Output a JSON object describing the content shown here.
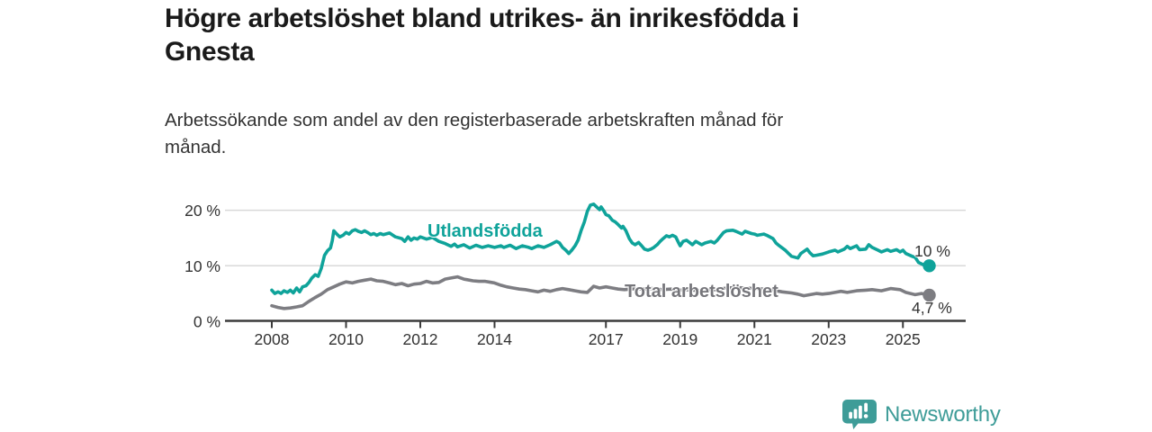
{
  "header": {
    "title_lines": [
      "Högre arbetslöshet bland utrikes- än inrikesfödda i",
      "Gnesta"
    ],
    "subtitle_lines": [
      "Arbetssökande som andel av den registerbaserade arbetskraften månad för",
      "månad."
    ]
  },
  "footer": {
    "brand": "Newsworthy"
  },
  "colors": {
    "accent_teal": "#0fa39a",
    "series_gray": "#7d7d82",
    "logo_teal": "#3e9c98",
    "axis": "#3b3b3b",
    "grid": "#d9d9d9",
    "text_dark": "#1a1a1a",
    "text_body": "#333333"
  },
  "chart_data": {
    "type": "line",
    "title": "Högre arbetslöshet bland utrikes- än inrikesfödda i Gnesta",
    "subtitle": "Arbetssökande som andel av den registerbaserade arbetskraften månad för månad.",
    "x_unit": "decimal_year",
    "x_range": [
      2008.0,
      2025.75
    ],
    "ylim": [
      0,
      22
    ],
    "grid": "horizontal",
    "legend_position": "inline-labels",
    "y_ticks": [
      {
        "value": 0,
        "label": "0 %"
      },
      {
        "value": 10,
        "label": "10 %"
      },
      {
        "value": 20,
        "label": "20 %"
      }
    ],
    "x_ticks": [
      {
        "value": 2008,
        "label": "2008"
      },
      {
        "value": 2010,
        "label": "2010"
      },
      {
        "value": 2012,
        "label": "2012"
      },
      {
        "value": 2014,
        "label": "2014"
      },
      {
        "value": 2017,
        "label": "2017"
      },
      {
        "value": 2019,
        "label": "2019"
      },
      {
        "value": 2021,
        "label": "2021"
      },
      {
        "value": 2023,
        "label": "2023"
      },
      {
        "value": 2025,
        "label": "2025"
      }
    ],
    "series": [
      {
        "name": "Total arbetslöshet",
        "color": "#7d7d82",
        "end_value": 4.7,
        "end_label": "4,7 %",
        "points": [
          [
            2008.0,
            2.8
          ],
          [
            2008.17,
            2.5
          ],
          [
            2008.33,
            2.3
          ],
          [
            2008.5,
            2.4
          ],
          [
            2008.67,
            2.6
          ],
          [
            2008.83,
            2.8
          ],
          [
            2009.0,
            3.6
          ],
          [
            2009.17,
            4.3
          ],
          [
            2009.33,
            4.9
          ],
          [
            2009.5,
            5.7
          ],
          [
            2009.67,
            6.2
          ],
          [
            2009.83,
            6.7
          ],
          [
            2010.0,
            7.1
          ],
          [
            2010.17,
            6.9
          ],
          [
            2010.33,
            7.2
          ],
          [
            2010.5,
            7.4
          ],
          [
            2010.67,
            7.6
          ],
          [
            2010.83,
            7.3
          ],
          [
            2011.0,
            7.2
          ],
          [
            2011.17,
            6.9
          ],
          [
            2011.33,
            6.6
          ],
          [
            2011.5,
            6.8
          ],
          [
            2011.67,
            6.4
          ],
          [
            2011.83,
            6.7
          ],
          [
            2012.0,
            6.8
          ],
          [
            2012.17,
            7.2
          ],
          [
            2012.33,
            6.9
          ],
          [
            2012.5,
            7.0
          ],
          [
            2012.67,
            7.6
          ],
          [
            2012.83,
            7.8
          ],
          [
            2013.0,
            8.0
          ],
          [
            2013.17,
            7.6
          ],
          [
            2013.25,
            7.5
          ],
          [
            2013.42,
            7.3
          ],
          [
            2013.58,
            7.2
          ],
          [
            2013.75,
            7.2
          ],
          [
            2013.92,
            7.0
          ],
          [
            2014.0,
            6.9
          ],
          [
            2014.17,
            6.5
          ],
          [
            2014.33,
            6.2
          ],
          [
            2014.5,
            6.0
          ],
          [
            2014.67,
            5.8
          ],
          [
            2014.83,
            5.7
          ],
          [
            2015.0,
            5.5
          ],
          [
            2015.17,
            5.3
          ],
          [
            2015.33,
            5.6
          ],
          [
            2015.5,
            5.4
          ],
          [
            2015.67,
            5.7
          ],
          [
            2015.83,
            5.9
          ],
          [
            2016.0,
            5.7
          ],
          [
            2016.17,
            5.5
          ],
          [
            2016.33,
            5.3
          ],
          [
            2016.5,
            5.2
          ],
          [
            2016.67,
            6.3
          ],
          [
            2016.83,
            6.0
          ],
          [
            2017.0,
            6.2
          ],
          [
            2017.17,
            6.0
          ],
          [
            2017.33,
            5.8
          ],
          [
            2017.5,
            5.7
          ],
          [
            2017.67,
            5.8
          ],
          [
            2017.83,
            5.9
          ],
          [
            2018.0,
            5.8
          ],
          [
            2018.25,
            5.9
          ],
          [
            2018.5,
            5.7
          ],
          [
            2018.75,
            5.8
          ],
          [
            2019.0,
            5.6
          ],
          [
            2019.25,
            5.7
          ],
          [
            2019.5,
            5.5
          ],
          [
            2019.75,
            5.6
          ],
          [
            2020.0,
            5.7
          ],
          [
            2020.25,
            6.0
          ],
          [
            2020.5,
            6.1
          ],
          [
            2020.75,
            6.0
          ],
          [
            2021.0,
            5.9
          ],
          [
            2021.25,
            5.8
          ],
          [
            2021.5,
            5.6
          ],
          [
            2021.75,
            5.3
          ],
          [
            2022.0,
            5.1
          ],
          [
            2022.17,
            4.9
          ],
          [
            2022.33,
            4.6
          ],
          [
            2022.5,
            4.8
          ],
          [
            2022.67,
            5.0
          ],
          [
            2022.83,
            4.9
          ],
          [
            2023.0,
            5.0
          ],
          [
            2023.17,
            5.2
          ],
          [
            2023.33,
            5.4
          ],
          [
            2023.5,
            5.2
          ],
          [
            2023.75,
            5.5
          ],
          [
            2024.0,
            5.6
          ],
          [
            2024.17,
            5.7
          ],
          [
            2024.42,
            5.5
          ],
          [
            2024.67,
            5.9
          ],
          [
            2024.92,
            5.7
          ],
          [
            2025.08,
            5.2
          ],
          [
            2025.33,
            4.8
          ],
          [
            2025.5,
            5.0
          ],
          [
            2025.71,
            4.7
          ]
        ]
      },
      {
        "name": "Utlandsfödda",
        "color": "#0fa39a",
        "end_value": 10,
        "end_label": "10 %",
        "points": [
          [
            2008.0,
            5.6
          ],
          [
            2008.08,
            5.0
          ],
          [
            2008.17,
            5.3
          ],
          [
            2008.25,
            5.0
          ],
          [
            2008.33,
            5.5
          ],
          [
            2008.42,
            5.2
          ],
          [
            2008.5,
            5.6
          ],
          [
            2008.58,
            5.1
          ],
          [
            2008.67,
            6.0
          ],
          [
            2008.75,
            5.3
          ],
          [
            2008.83,
            6.2
          ],
          [
            2008.92,
            6.4
          ],
          [
            2009.0,
            7.0
          ],
          [
            2009.08,
            7.8
          ],
          [
            2009.17,
            8.4
          ],
          [
            2009.25,
            8.1
          ],
          [
            2009.33,
            9.5
          ],
          [
            2009.42,
            11.9
          ],
          [
            2009.5,
            12.7
          ],
          [
            2009.58,
            13.2
          ],
          [
            2009.63,
            14.5
          ],
          [
            2009.67,
            16.3
          ],
          [
            2009.75,
            15.7
          ],
          [
            2009.83,
            15.2
          ],
          [
            2009.92,
            15.5
          ],
          [
            2010.0,
            16.0
          ],
          [
            2010.08,
            15.7
          ],
          [
            2010.17,
            16.3
          ],
          [
            2010.25,
            16.5
          ],
          [
            2010.33,
            16.2
          ],
          [
            2010.42,
            16.0
          ],
          [
            2010.5,
            16.3
          ],
          [
            2010.58,
            16.0
          ],
          [
            2010.67,
            15.6
          ],
          [
            2010.75,
            15.8
          ],
          [
            2010.83,
            15.5
          ],
          [
            2010.92,
            15.8
          ],
          [
            2011.0,
            15.6
          ],
          [
            2011.17,
            15.9
          ],
          [
            2011.33,
            15.2
          ],
          [
            2011.5,
            14.9
          ],
          [
            2011.58,
            14.4
          ],
          [
            2011.67,
            15.2
          ],
          [
            2011.75,
            14.6
          ],
          [
            2011.83,
            15.0
          ],
          [
            2011.92,
            14.8
          ],
          [
            2012.0,
            15.2
          ],
          [
            2012.17,
            14.8
          ],
          [
            2012.33,
            15.1
          ],
          [
            2012.5,
            14.4
          ],
          [
            2012.67,
            14.0
          ],
          [
            2012.83,
            13.5
          ],
          [
            2012.92,
            13.9
          ],
          [
            2013.0,
            13.4
          ],
          [
            2013.17,
            13.8
          ],
          [
            2013.33,
            13.2
          ],
          [
            2013.5,
            13.7
          ],
          [
            2013.67,
            13.3
          ],
          [
            2013.83,
            13.6
          ],
          [
            2014.0,
            13.3
          ],
          [
            2014.17,
            13.6
          ],
          [
            2014.25,
            13.3
          ],
          [
            2014.42,
            13.7
          ],
          [
            2014.58,
            13.1
          ],
          [
            2014.75,
            13.6
          ],
          [
            2014.92,
            13.3
          ],
          [
            2015.0,
            13.1
          ],
          [
            2015.17,
            13.6
          ],
          [
            2015.33,
            13.3
          ],
          [
            2015.5,
            13.8
          ],
          [
            2015.67,
            14.4
          ],
          [
            2015.75,
            14.1
          ],
          [
            2015.83,
            13.3
          ],
          [
            2015.92,
            12.8
          ],
          [
            2016.0,
            12.2
          ],
          [
            2016.08,
            12.8
          ],
          [
            2016.17,
            13.6
          ],
          [
            2016.25,
            14.6
          ],
          [
            2016.33,
            16.3
          ],
          [
            2016.42,
            17.9
          ],
          [
            2016.5,
            19.8
          ],
          [
            2016.58,
            20.9
          ],
          [
            2016.67,
            21.1
          ],
          [
            2016.75,
            20.6
          ],
          [
            2016.83,
            20.1
          ],
          [
            2016.87,
            20.6
          ],
          [
            2016.95,
            19.8
          ],
          [
            2017.0,
            19.2
          ],
          [
            2017.08,
            19.0
          ],
          [
            2017.17,
            18.2
          ],
          [
            2017.25,
            17.9
          ],
          [
            2017.33,
            17.4
          ],
          [
            2017.42,
            16.8
          ],
          [
            2017.46,
            17.1
          ],
          [
            2017.54,
            16.3
          ],
          [
            2017.63,
            14.9
          ],
          [
            2017.71,
            14.1
          ],
          [
            2017.79,
            13.8
          ],
          [
            2017.88,
            14.2
          ],
          [
            2017.96,
            13.6
          ],
          [
            2018.04,
            13.0
          ],
          [
            2018.13,
            12.8
          ],
          [
            2018.21,
            13.0
          ],
          [
            2018.29,
            13.3
          ],
          [
            2018.38,
            13.8
          ],
          [
            2018.46,
            14.4
          ],
          [
            2018.54,
            14.9
          ],
          [
            2018.63,
            15.4
          ],
          [
            2018.71,
            15.2
          ],
          [
            2018.79,
            15.5
          ],
          [
            2018.88,
            15.2
          ],
          [
            2018.96,
            14.1
          ],
          [
            2019.0,
            13.6
          ],
          [
            2019.08,
            14.4
          ],
          [
            2019.17,
            14.6
          ],
          [
            2019.33,
            13.8
          ],
          [
            2019.42,
            14.4
          ],
          [
            2019.58,
            13.8
          ],
          [
            2019.67,
            14.1
          ],
          [
            2019.83,
            14.4
          ],
          [
            2019.92,
            14.1
          ],
          [
            2020.0,
            14.6
          ],
          [
            2020.17,
            16.0
          ],
          [
            2020.25,
            16.3
          ],
          [
            2020.42,
            16.4
          ],
          [
            2020.5,
            16.2
          ],
          [
            2020.67,
            15.7
          ],
          [
            2020.75,
            16.2
          ],
          [
            2020.92,
            15.8
          ],
          [
            2021.0,
            15.7
          ],
          [
            2021.08,
            15.5
          ],
          [
            2021.25,
            15.7
          ],
          [
            2021.33,
            15.5
          ],
          [
            2021.5,
            14.9
          ],
          [
            2021.58,
            14.1
          ],
          [
            2021.67,
            13.6
          ],
          [
            2021.83,
            12.8
          ],
          [
            2021.92,
            12.2
          ],
          [
            2022.0,
            11.7
          ],
          [
            2022.17,
            11.4
          ],
          [
            2022.25,
            12.2
          ],
          [
            2022.42,
            13.0
          ],
          [
            2022.5,
            12.3
          ],
          [
            2022.58,
            11.8
          ],
          [
            2022.67,
            11.9
          ],
          [
            2022.83,
            12.1
          ],
          [
            2023.0,
            12.5
          ],
          [
            2023.17,
            12.8
          ],
          [
            2023.25,
            12.5
          ],
          [
            2023.42,
            13.0
          ],
          [
            2023.5,
            13.5
          ],
          [
            2023.58,
            13.1
          ],
          [
            2023.75,
            13.6
          ],
          [
            2023.83,
            12.9
          ],
          [
            2024.0,
            13.0
          ],
          [
            2024.08,
            13.8
          ],
          [
            2024.17,
            13.3
          ],
          [
            2024.33,
            12.8
          ],
          [
            2024.42,
            12.5
          ],
          [
            2024.58,
            12.9
          ],
          [
            2024.67,
            12.6
          ],
          [
            2024.83,
            12.9
          ],
          [
            2024.92,
            12.5
          ],
          [
            2025.0,
            12.8
          ],
          [
            2025.08,
            12.2
          ],
          [
            2025.25,
            11.7
          ],
          [
            2025.33,
            11.5
          ],
          [
            2025.42,
            10.6
          ],
          [
            2025.58,
            10.1
          ],
          [
            2025.71,
            10.0
          ]
        ]
      }
    ]
  }
}
